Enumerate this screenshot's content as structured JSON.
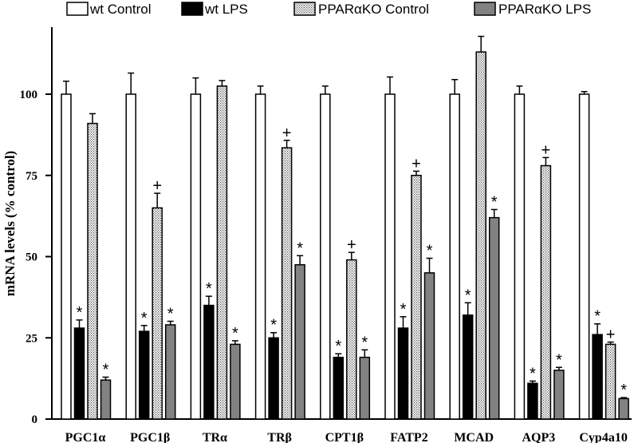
{
  "chart_data": {
    "type": "bar",
    "ylabel": "mRNA levels (% control)",
    "ylim": [
      0,
      125
    ],
    "yticks": [
      0,
      25,
      50,
      75,
      100
    ],
    "categories": [
      "PGC1α",
      "PGC1β",
      "TRα",
      "TRβ",
      "CPT1β",
      "FATP2",
      "MCAD",
      "AQP3",
      "Cyp4a10"
    ],
    "legend_position": "top",
    "series": [
      {
        "name": "wt Control",
        "pattern": "open",
        "values": [
          100,
          100,
          100,
          100,
          100,
          100,
          100,
          100,
          100
        ],
        "errors": [
          4,
          6.5,
          5,
          2.5,
          2.5,
          5.3,
          4.5,
          2.5,
          0.8
        ],
        "annotations": [
          "",
          "",
          "",
          "",
          "",
          "",
          "",
          "",
          ""
        ]
      },
      {
        "name": "wt LPS",
        "pattern": "solid",
        "values": [
          28,
          27,
          35,
          25,
          19,
          28,
          32,
          11,
          26
        ],
        "errors": [
          2.5,
          1.8,
          2.8,
          1.6,
          1.1,
          3.5,
          3.8,
          0.7,
          3.3
        ],
        "annotations": [
          "*",
          "*",
          "*",
          "*",
          "*",
          "*",
          "*",
          "*",
          "*"
        ]
      },
      {
        "name": "PPARαKO Control",
        "pattern": "dotted",
        "values": [
          91,
          65,
          102.5,
          83.5,
          49,
          75,
          113,
          78,
          23
        ],
        "errors": [
          3,
          4.5,
          1.7,
          2.3,
          2.3,
          1.3,
          4.8,
          2.5,
          0.7
        ],
        "annotations": [
          "",
          "+",
          "",
          "+",
          "+",
          "+",
          "",
          "+",
          "+"
        ]
      },
      {
        "name": "PPARαKO LPS",
        "pattern": "gray",
        "values": [
          12,
          29,
          23,
          47.5,
          19,
          45,
          62,
          15,
          6.3
        ],
        "errors": [
          0.9,
          1.1,
          1.1,
          2.8,
          2.3,
          4.5,
          2.5,
          0.9,
          0.3
        ],
        "annotations": [
          "*",
          "*",
          "*",
          "*",
          "*",
          "*",
          "*",
          "*",
          "*"
        ]
      }
    ]
  }
}
